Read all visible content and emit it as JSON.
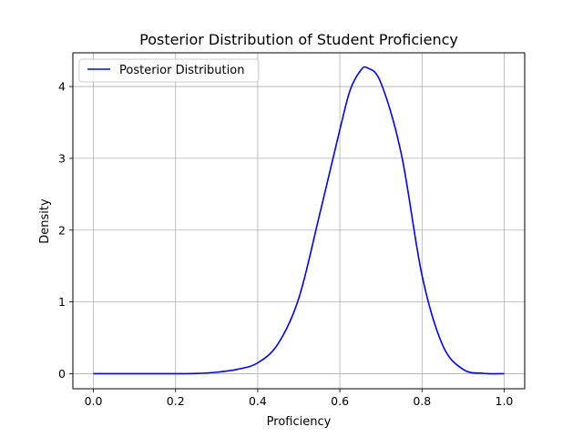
{
  "chart_data": {
    "type": "line",
    "title": "Posterior Distribution of Student Proficiency",
    "xlabel": "Proficiency",
    "ylabel": "Density",
    "xlim": [
      -0.05,
      1.05
    ],
    "ylim": [
      -0.21,
      4.47
    ],
    "xticks": [
      0.0,
      0.2,
      0.4,
      0.6,
      0.8,
      1.0
    ],
    "xtick_labels": [
      "0.0",
      "0.2",
      "0.4",
      "0.6",
      "0.8",
      "1.0"
    ],
    "yticks": [
      0,
      1,
      2,
      3,
      4
    ],
    "ytick_labels": [
      "0",
      "1",
      "2",
      "3",
      "4"
    ],
    "grid": true,
    "legend_position": "top-left",
    "series": [
      {
        "name": "Posterior Distribution",
        "color": "#0000ff",
        "x": [
          0.0,
          0.05,
          0.1,
          0.15,
          0.2,
          0.25,
          0.3,
          0.35,
          0.4,
          0.45,
          0.5,
          0.55,
          0.6,
          0.625,
          0.65,
          0.667,
          0.7,
          0.75,
          0.8,
          0.85,
          0.9,
          0.95,
          1.0
        ],
        "y": [
          0.0,
          0.0,
          0.0,
          0.0,
          0.0,
          0.003,
          0.02,
          0.06,
          0.15,
          0.42,
          1.05,
          2.2,
          3.4,
          3.95,
          4.22,
          4.26,
          4.05,
          3.05,
          1.37,
          0.4,
          0.06,
          0.004,
          0.0
        ]
      }
    ]
  }
}
